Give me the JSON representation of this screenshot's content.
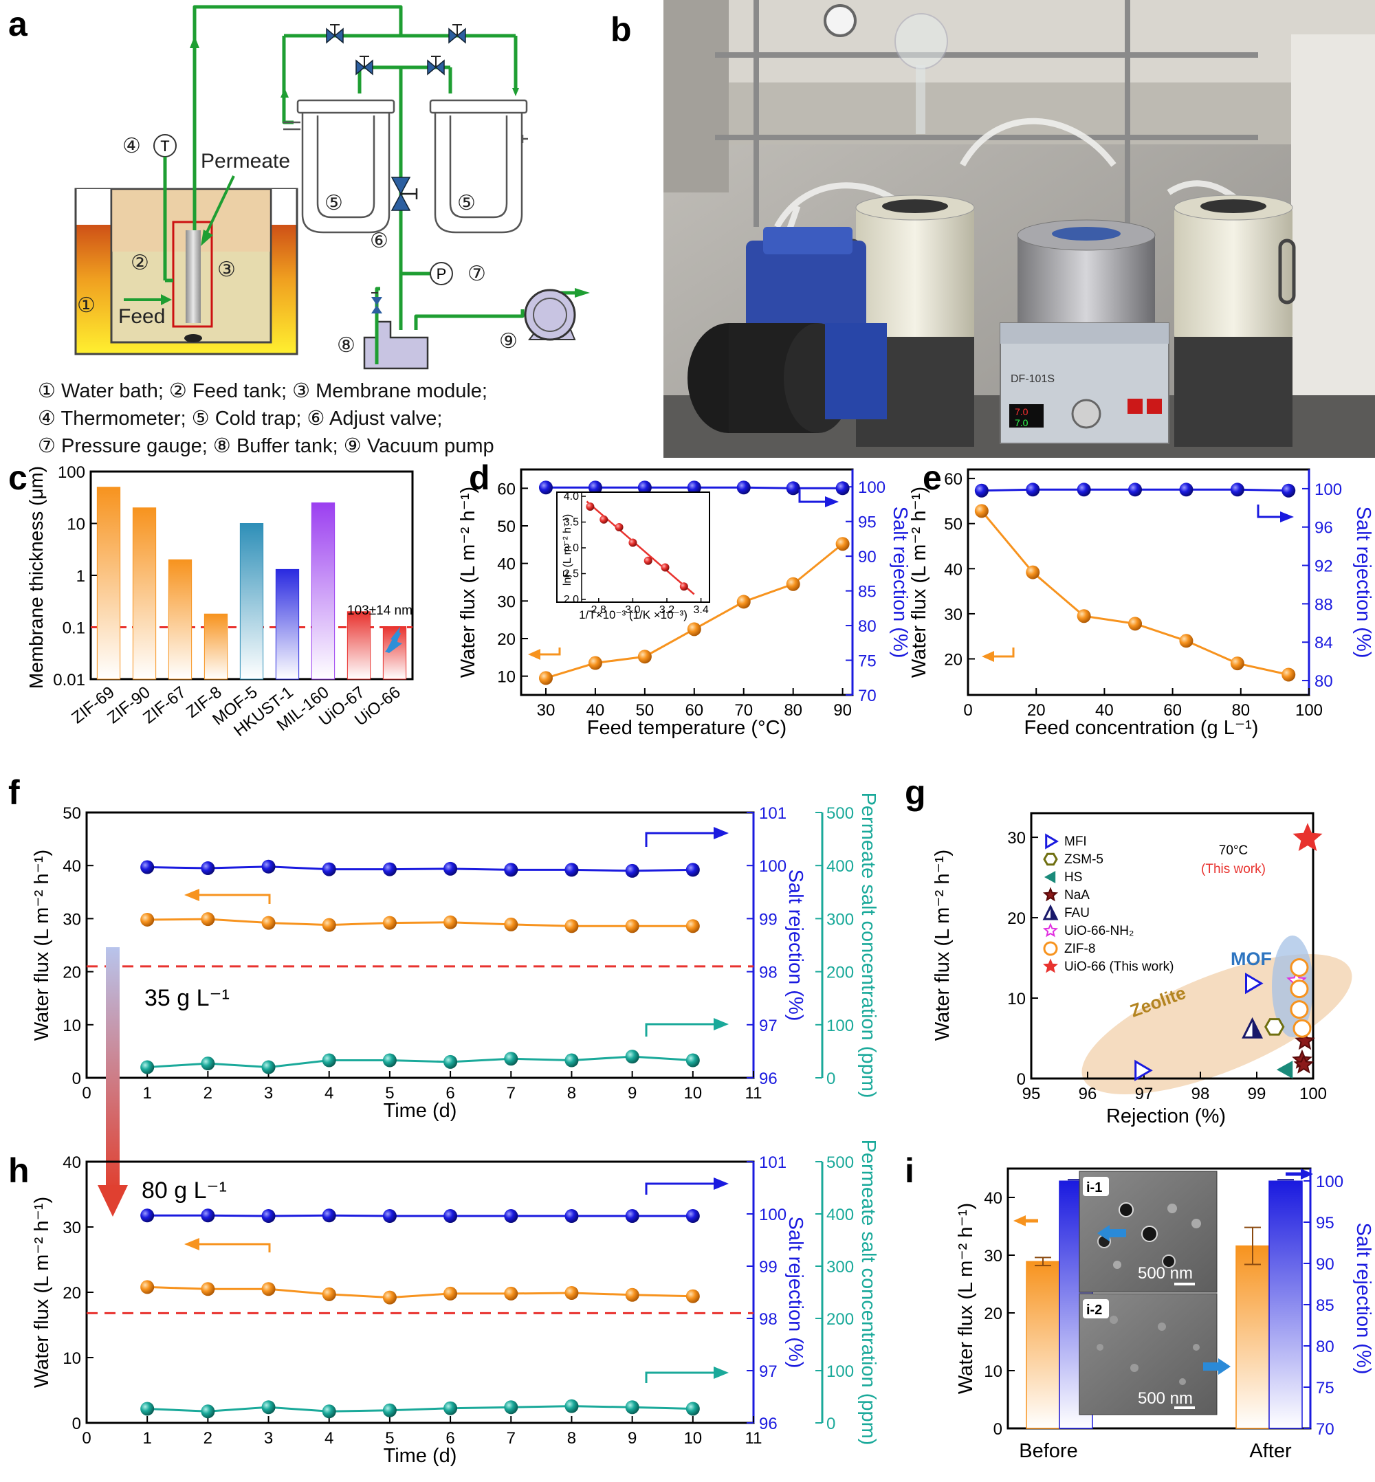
{
  "panel_letters": {
    "a": "a",
    "b": "b",
    "c": "c",
    "d": "d",
    "e": "e",
    "f": "f",
    "g": "g",
    "h": "h",
    "i": "i"
  },
  "panel_a": {
    "labels": {
      "thermometer": "T",
      "gauge": "P",
      "permeate": "Permeate",
      "feed": "Feed"
    },
    "numbers": {
      "n1": "①",
      "n2": "②",
      "n3": "③",
      "n4": "④",
      "n5a": "⑤",
      "n5b": "⑤",
      "n6": "⑥",
      "n7": "⑦",
      "n8": "⑧",
      "n9": "⑨"
    },
    "legend": [
      "① Water bath; ② Feed tank; ③ Membrane module;",
      "④ Thermometer; ⑤ Cold trap; ⑥ Adjust valve;",
      "⑦ Pressure gauge; ⑧ Buffer tank; ⑨ Vacuum pump"
    ]
  },
  "panel_b": {
    "photo_texts": {
      "controller": "DF-101S",
      "display_top": "7.0",
      "display_bot": "7.0"
    }
  },
  "colors": {
    "orange": "#f7931e",
    "blue": "#1a1adf",
    "teal": "#1aa99a",
    "red": "#e8322e",
    "green": "#1e9e32"
  },
  "chart_data": [
    {
      "id": "c",
      "type": "bar",
      "title": "",
      "ylabel": "Membrane thickness (μm)",
      "yscale": "log",
      "ylim": [
        0.01,
        100
      ],
      "ytick_labels": [
        "0.01",
        "0.1",
        "1",
        "10",
        "100"
      ],
      "categories": [
        "ZIF-69",
        "ZIF-90",
        "ZIF-67",
        "ZIF-8",
        "MOF-5",
        "HKUST-1",
        "MIL-160",
        "UiO-67",
        "UiO-66"
      ],
      "values": [
        50,
        20,
        2,
        0.18,
        10,
        1.3,
        25,
        0.2,
        0.103
      ],
      "bar_colors": [
        "#f7931e",
        "#f7931e",
        "#f7931e",
        "#f7931e",
        "#2e8fb8",
        "#2a2ae0",
        "#9b3ff0",
        "#e8322e",
        "#e8322e"
      ],
      "reference_line": 0.1,
      "annotation": "103±14 nm"
    },
    {
      "id": "d",
      "type": "line",
      "xlabel": "Feed temperature (°C)",
      "ylabel": "Water flux (L m⁻² h⁻¹)",
      "y2label": "Salt rejection (%)",
      "xlim": [
        25,
        92
      ],
      "ylim": [
        5,
        65
      ],
      "y2lim": [
        70,
        102.5
      ],
      "xticks": [
        "30",
        "40",
        "50",
        "60",
        "70",
        "80",
        "90"
      ],
      "yticks": [
        "10",
        "20",
        "30",
        "40",
        "50",
        "60"
      ],
      "y2ticks": [
        "70",
        "75",
        "80",
        "85",
        "90",
        "95",
        "100"
      ],
      "series": [
        {
          "name": "Water flux",
          "axis": "left",
          "x": [
            30,
            40,
            50,
            60,
            70,
            80,
            90
          ],
          "values": [
            9.5,
            13.5,
            15.2,
            22.5,
            29.8,
            34.5,
            45.2
          ]
        },
        {
          "name": "Salt rejection",
          "axis": "right",
          "x": [
            30,
            40,
            50,
            60,
            70,
            80,
            90
          ],
          "values": [
            99.9,
            99.9,
            99.9,
            99.9,
            99.9,
            99.8,
            99.8
          ]
        }
      ],
      "inset": {
        "type": "scatter",
        "xlabel": "1/T×10⁻³ (1/K ×10⁻³)",
        "ylabel": "lnF (L m⁻² h⁻¹)",
        "xlim": [
          2.7,
          3.45
        ],
        "ylim": [
          2.0,
          4.0
        ],
        "xticks": [
          "2.8",
          "3.0",
          "3.2",
          "3.4"
        ],
        "yticks": [
          "2.0",
          "2.5",
          "3.0",
          "3.5",
          "4.0"
        ],
        "x": [
          2.75,
          2.83,
          2.92,
          3.0,
          3.09,
          3.19,
          3.3
        ],
        "values": [
          3.8,
          3.55,
          3.4,
          3.1,
          2.75,
          2.62,
          2.25
        ],
        "fit": {
          "x": [
            2.73,
            3.36
          ],
          "values": [
            3.9,
            2.1
          ]
        }
      }
    },
    {
      "id": "e",
      "type": "line",
      "xlabel": "Feed concentration (g L⁻¹)",
      "ylabel": "Water flux (L m⁻² h⁻¹)",
      "y2label": "Salt rejection (%)",
      "xlim": [
        0,
        100
      ],
      "ylim": [
        12,
        62
      ],
      "y2lim": [
        78.5,
        102
      ],
      "xticks": [
        "0",
        "20",
        "40",
        "60",
        "80",
        "100"
      ],
      "yticks": [
        "20",
        "30",
        "40",
        "50",
        "60"
      ],
      "y2ticks": [
        "80",
        "84",
        "88",
        "92",
        "96",
        "100"
      ],
      "series": [
        {
          "name": "Water flux",
          "axis": "left",
          "x": [
            4,
            19,
            34,
            49,
            64,
            79,
            94
          ],
          "values": [
            52.8,
            39.2,
            29.5,
            27.8,
            24,
            19,
            16.5
          ]
        },
        {
          "name": "Salt rejection",
          "axis": "right",
          "x": [
            4,
            19,
            34,
            49,
            64,
            79,
            94
          ],
          "values": [
            99.8,
            99.9,
            99.9,
            99.9,
            99.9,
            99.9,
            99.8
          ]
        }
      ]
    },
    {
      "id": "f",
      "type": "line",
      "xlabel": "Time (d)",
      "ylabel": "Water flux (L m⁻² h⁻¹)",
      "y2label": "Salt rejection (%)",
      "y3label": "Permeate salt concentration (ppm)",
      "xlim": [
        0,
        11
      ],
      "ylim": [
        0,
        50
      ],
      "y2lim": [
        96,
        101
      ],
      "y3lim": [
        0,
        500
      ],
      "xticks": [
        "0",
        "1",
        "2",
        "3",
        "4",
        "5",
        "6",
        "7",
        "8",
        "9",
        "10",
        "11"
      ],
      "yticks": [
        "0",
        "10",
        "20",
        "30",
        "40",
        "50"
      ],
      "y2ticks": [
        "96",
        "97",
        "98",
        "99",
        "100",
        "101"
      ],
      "y3ticks": [
        "0",
        "100",
        "200",
        "300",
        "400",
        "500"
      ],
      "annotation": "35 g L⁻¹",
      "series": [
        {
          "name": "Salt rejection",
          "axis": "right",
          "x": [
            1,
            2,
            3,
            4,
            5,
            6,
            7,
            8,
            9,
            10
          ],
          "values": [
            99.97,
            99.95,
            99.98,
            99.93,
            99.93,
            99.94,
            99.92,
            99.92,
            99.9,
            99.92
          ]
        },
        {
          "name": "Water flux",
          "axis": "left",
          "x": [
            1,
            2,
            3,
            4,
            5,
            6,
            7,
            8,
            9,
            10
          ],
          "values": [
            29.8,
            29.9,
            29.2,
            28.8,
            29.2,
            29.3,
            28.9,
            28.6,
            28.6,
            28.6
          ]
        },
        {
          "name": "Permeate salt concentration",
          "axis": "third",
          "x": [
            1,
            2,
            3,
            4,
            5,
            6,
            7,
            8,
            9,
            10
          ],
          "values": [
            20,
            27,
            20,
            33,
            33,
            30,
            36,
            33,
            40,
            33
          ]
        }
      ]
    },
    {
      "id": "h",
      "type": "line",
      "xlabel": "Time (d)",
      "ylabel": "Water flux (L m⁻² h⁻¹)",
      "y2label": "Salt rejection (%)",
      "y3label": "Permeate salt concentration (ppm)",
      "xlim": [
        0,
        11
      ],
      "ylim": [
        0,
        40
      ],
      "y2lim": [
        96,
        101
      ],
      "y3lim": [
        0,
        500
      ],
      "xticks": [
        "0",
        "1",
        "2",
        "3",
        "4",
        "5",
        "6",
        "7",
        "8",
        "9",
        "10",
        "11"
      ],
      "yticks": [
        "0",
        "10",
        "20",
        "30",
        "40"
      ],
      "y2ticks": [
        "96",
        "97",
        "98",
        "99",
        "100",
        "101"
      ],
      "y3ticks": [
        "0",
        "100",
        "200",
        "300",
        "400",
        "500"
      ],
      "annotation": "80 g L⁻¹",
      "series": [
        {
          "name": "Salt rejection",
          "axis": "right",
          "x": [
            1,
            2,
            3,
            4,
            5,
            6,
            7,
            8,
            9,
            10
          ],
          "values": [
            99.97,
            99.97,
            99.96,
            99.97,
            99.96,
            99.96,
            99.96,
            99.96,
            99.96,
            99.96
          ]
        },
        {
          "name": "Water flux",
          "axis": "left",
          "x": [
            1,
            2,
            3,
            4,
            5,
            6,
            7,
            8,
            9,
            10
          ],
          "values": [
            20.8,
            20.5,
            20.5,
            19.7,
            19.2,
            19.8,
            19.8,
            19.9,
            19.6,
            19.4
          ]
        },
        {
          "name": "Permeate salt concentration",
          "axis": "third",
          "x": [
            1,
            2,
            3,
            4,
            5,
            6,
            7,
            8,
            9,
            10
          ],
          "values": [
            27,
            22,
            30,
            22,
            24,
            28,
            30,
            32,
            30,
            27
          ]
        }
      ]
    },
    {
      "id": "g",
      "type": "scatter",
      "xlabel": "Rejection (%)",
      "ylabel": "Water flux (L m⁻² h⁻¹)",
      "xlim": [
        95,
        100
      ],
      "ylim": [
        0,
        33
      ],
      "xticks": [
        "95",
        "96",
        "97",
        "98",
        "99",
        "100"
      ],
      "yticks": [
        "0",
        "10",
        "20",
        "30"
      ],
      "region_labels": {
        "mof": "MOF",
        "zeolite": "Zeolite"
      },
      "annotation": {
        "line1": "70°C",
        "line2": "(This work)"
      },
      "legend": [
        "MFI",
        "ZSM-5",
        "HS",
        "NaA",
        "FAU",
        "UiO-66-NH₂",
        "ZIF-8",
        "UiO-66 (This work)"
      ],
      "series": [
        {
          "name": "MFI",
          "x": [
            97,
            99
          ],
          "values": [
            0.5,
            11.5
          ]
        },
        {
          "name": "ZSM-5",
          "x": [
            99.4
          ],
          "values": [
            6
          ]
        },
        {
          "name": "HS",
          "x": [
            99.6
          ],
          "values": [
            0.6
          ]
        },
        {
          "name": "NaA",
          "x": [
            99.95,
            99.9,
            99.93
          ],
          "values": [
            4.2,
            1.8,
            1.2
          ]
        },
        {
          "name": "FAU",
          "x": [
            99.0
          ],
          "values": [
            5.8
          ]
        },
        {
          "name": "UiO-66-NH₂",
          "x": [
            99.8
          ],
          "values": [
            11.8
          ]
        },
        {
          "name": "ZIF-8",
          "x": [
            99.85,
            99.85,
            99.85,
            99.9
          ],
          "values": [
            13.5,
            10.8,
            8.2,
            5.8
          ]
        },
        {
          "name": "UiO-66 (This work)",
          "x": [
            100
          ],
          "values": [
            29.8
          ]
        }
      ]
    },
    {
      "id": "i",
      "type": "bar",
      "categories": [
        "Before",
        "After"
      ],
      "ylabel": "Water flux (L m⁻² h⁻¹)",
      "y2label": "Salt rejection (%)",
      "ylim": [
        0,
        45
      ],
      "y2lim": [
        70,
        101.5
      ],
      "yticks": [
        "0",
        "10",
        "20",
        "30",
        "40"
      ],
      "y2ticks": [
        "70",
        "75",
        "80",
        "85",
        "90",
        "95",
        "100"
      ],
      "series": [
        {
          "name": "Water flux",
          "axis": "left",
          "values": [
            28.9,
            31.6
          ],
          "errors": [
            0.7,
            3.2
          ]
        },
        {
          "name": "Salt rejection",
          "axis": "right",
          "values": [
            99.98,
            99.98
          ]
        }
      ],
      "insets": [
        {
          "label": "i-1",
          "scalebar": "500 nm"
        },
        {
          "label": "i-2",
          "scalebar": "500 nm"
        }
      ]
    }
  ]
}
